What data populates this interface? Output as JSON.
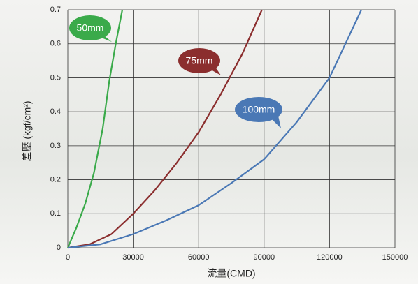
{
  "chart_data": {
    "type": "line",
    "x_label": "流量(CMD)",
    "y_label": "差壓 (kgf/cm²)",
    "xlim": [
      0,
      150000
    ],
    "ylim": [
      0,
      0.7
    ],
    "xticks": [
      0,
      30000,
      60000,
      90000,
      120000,
      150000
    ],
    "yticks": [
      0,
      0.1,
      0.2,
      0.3,
      0.4,
      0.5,
      0.6,
      0.7
    ],
    "grid": true,
    "series": [
      {
        "name": "50mm",
        "color": "#3aaa4a",
        "x": [
          0,
          4000,
          8000,
          12000,
          16000,
          19000,
          22000,
          25000
        ],
        "values": [
          0,
          0.06,
          0.13,
          0.22,
          0.35,
          0.49,
          0.6,
          0.7
        ]
      },
      {
        "name": "75mm",
        "color": "#8b2e2e",
        "x": [
          0,
          10000,
          20000,
          30000,
          40000,
          50000,
          60000,
          70000,
          80000,
          89000
        ],
        "values": [
          0,
          0.01,
          0.04,
          0.1,
          0.17,
          0.25,
          0.34,
          0.45,
          0.57,
          0.7
        ]
      },
      {
        "name": "100mm",
        "color": "#4a78b5",
        "x": [
          0,
          15000,
          30000,
          45000,
          60000,
          75000,
          90000,
          105000,
          120000,
          134600
        ],
        "values": [
          0,
          0.01,
          0.04,
          0.08,
          0.125,
          0.19,
          0.26,
          0.37,
          0.5,
          0.7
        ]
      }
    ]
  }
}
